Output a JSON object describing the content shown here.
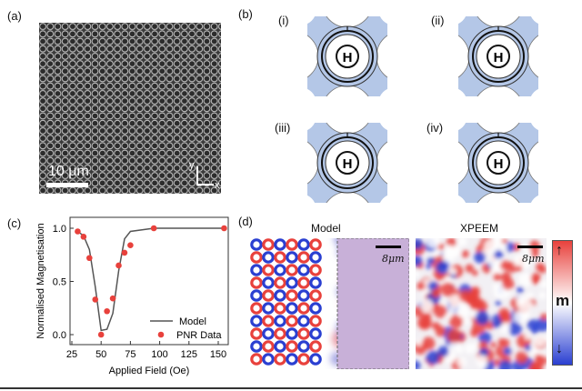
{
  "panels": {
    "a": {
      "label": "(a)",
      "scale_bar": "10 μm",
      "axis_y": "y",
      "axis_x": "x"
    },
    "b": {
      "label": "(b)",
      "sub_labels": [
        "(i)",
        "(ii)",
        "(iii)",
        "(iv)"
      ],
      "center_symbol": "H"
    },
    "c": {
      "label": "(c)"
    },
    "d": {
      "label": "(d)",
      "model_title": "Model",
      "xpeem_title": "XPEEM",
      "scale_model": "8μm",
      "scale_xpeem": "8μm",
      "colorbar_label": "m"
    }
  },
  "colors": {
    "red": "#e8413c",
    "blue": "#2a3fd1",
    "ring_blue": "#b4c7e7"
  },
  "chart_data": {
    "type": "line+scatter",
    "xlabel": "Applied Field (Oe)",
    "ylabel": "Normalised Magnetisation",
    "xlim": [
      25,
      155
    ],
    "ylim": [
      -0.1,
      1.1
    ],
    "xticks": [
      "25",
      "50",
      "75",
      "100",
      "125",
      "150"
    ],
    "yticks": [
      "0.0",
      "0.5",
      "1.0"
    ],
    "legend_position": "bottom-right",
    "series": [
      {
        "name": "Model",
        "kind": "line",
        "color": "#555555",
        "x": [
          30,
          35,
          40,
          45,
          50,
          55,
          60,
          65,
          70,
          75,
          95,
          155
        ],
        "y": [
          0.97,
          0.93,
          0.8,
          0.45,
          0.04,
          0.05,
          0.2,
          0.6,
          0.9,
          0.97,
          1.0,
          1.0
        ]
      },
      {
        "name": "PNR Data",
        "kind": "scatter",
        "color": "#e8413c",
        "x": [
          30,
          35,
          40,
          45,
          50,
          55,
          60,
          65,
          70,
          75,
          95,
          155
        ],
        "y": [
          0.97,
          0.92,
          0.72,
          0.33,
          0.0,
          0.22,
          0.34,
          0.65,
          0.77,
          0.84,
          1.0,
          1.0
        ]
      }
    ]
  }
}
